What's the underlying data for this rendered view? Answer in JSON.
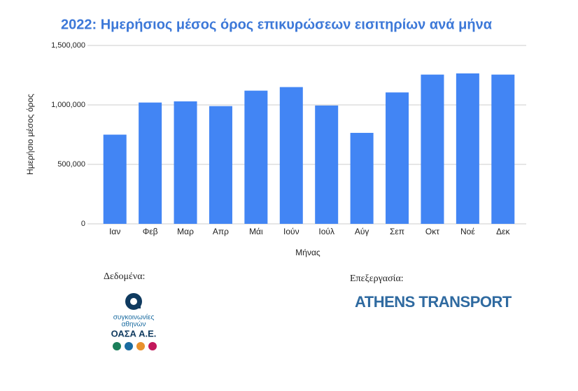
{
  "chart_data": {
    "type": "bar",
    "title": "2022: Ημερήσιος μέσος όρος επικυρώσεων εισιτηρίων ανά μήνα",
    "x_label": "Μήνας",
    "y_label": "Ημερήσιο μέσος όρος",
    "categories": [
      "Ιαν",
      "Φεβ",
      "Μαρ",
      "Απρ",
      "Μάι",
      "Ιούν",
      "Ιούλ",
      "Αύγ",
      "Σεπ",
      "Οκτ",
      "Νοέ",
      "Δεκ"
    ],
    "values": [
      750000,
      1020000,
      1030000,
      990000,
      1120000,
      1150000,
      995000,
      765000,
      1105000,
      1255000,
      1265000,
      1255000
    ],
    "color": "#4285f4",
    "ylim": [
      0,
      1500000
    ],
    "yticks": [
      0,
      {
        "value": 500000,
        "label": "500,000"
      },
      {
        "value": 1000000,
        "label": "1,000,000"
      },
      {
        "value": 1500000,
        "label": "1,500,000"
      }
    ],
    "grid": true
  },
  "credits": {
    "data_label": "Δεδομένα:",
    "logo_line1": "συγκοινωνίες",
    "logo_line2": "αθηνών",
    "logo_name": "ΟΑΣΑ Α.Ε.",
    "processing_label": "Επεξεργασία:",
    "processor": "ATHENS TRANSPORT"
  }
}
